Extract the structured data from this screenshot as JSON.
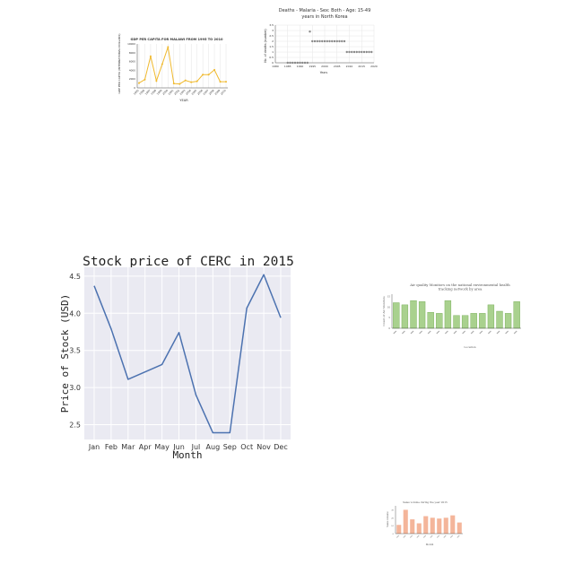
{
  "chart_data": [
    {
      "type": "line",
      "title": "GDP PER CAPITA FOR MALAWI FROM 1995 TO 2010",
      "xlabel": "YEAR",
      "ylabel": "GDP PER CAPITA (INTERNATIONAL DOLLARS)",
      "x": [
        "1995",
        "1996",
        "1997",
        "1998",
        "1999",
        "2000",
        "2001",
        "2002",
        "2003",
        "2004",
        "2005",
        "2006",
        "2007",
        "2008",
        "2009",
        "2010"
      ],
      "values": [
        1100,
        1900,
        7200,
        1600,
        5400,
        9300,
        1000,
        900,
        1700,
        1300,
        1500,
        3000,
        3000,
        4100,
        1400,
        1400
      ],
      "ylim": [
        0,
        10000
      ],
      "yticks": [
        0,
        2000,
        4000,
        6000,
        8000,
        10000
      ],
      "grid": "vertical",
      "colors": {
        "line": "#f0b92d"
      }
    },
    {
      "type": "scatter",
      "title_lines": [
        "Deaths - Malaria - Sex: Both - Age: 15-49",
        "years in North Korea"
      ],
      "xlabel": "Years",
      "ylabel": "No. of deaths (number)",
      "x_ticks": [
        "1980",
        "1985",
        "1990",
        "1995",
        "2000",
        "2005",
        "2010",
        "2015",
        "2020"
      ],
      "y_ticks": [
        "0",
        "0.5",
        "1",
        "1.5",
        "2",
        "2.5",
        "3",
        "3.5"
      ],
      "xlim": [
        1980,
        2020
      ],
      "ylim": [
        0,
        3.5
      ],
      "points_x": [
        1985,
        1986,
        1987,
        1988,
        1989,
        1990,
        1991,
        1992,
        1993,
        1994,
        1995,
        1996,
        1997,
        1998,
        1999,
        2000,
        2001,
        2002,
        2003,
        2004,
        2005,
        2006,
        2007,
        2008,
        2009,
        2010,
        2011,
        2012,
        2013,
        2014,
        2015,
        2016,
        2017,
        2018,
        2019
      ],
      "points_y": [
        0,
        0,
        0,
        0,
        0,
        0,
        0,
        0,
        0,
        2.9,
        2,
        2,
        2,
        2,
        2,
        2,
        2,
        2,
        2,
        2,
        2,
        2,
        2,
        2,
        1,
        1,
        1,
        1,
        1,
        1,
        1,
        1,
        1,
        1,
        1
      ],
      "grid": "both",
      "colors": {
        "point": "#8a8a8a"
      }
    },
    {
      "type": "line",
      "title": "Stock price of CERC in 2015",
      "xlabel": "Month",
      "ylabel": "Price of Stock (USD)",
      "categories": [
        "Jan",
        "Feb",
        "Mar",
        "Apr",
        "May",
        "Jun",
        "Jul",
        "Aug",
        "Sep",
        "Oct",
        "Nov",
        "Dec"
      ],
      "values": [
        4.37,
        3.79,
        3.11,
        3.21,
        3.31,
        3.74,
        2.9,
        2.39,
        2.39,
        4.07,
        4.52,
        3.94
      ],
      "yticks": [
        2.5,
        3.0,
        3.5,
        4.0,
        4.5
      ],
      "ytick_labels": [
        "2.5",
        "3.0",
        "3.5",
        "4.0",
        "4.5"
      ],
      "ylim": [
        2.3,
        4.62
      ],
      "grid": "both",
      "colors": {
        "line": "#4c72b0",
        "background": "#eaeaf2"
      }
    },
    {
      "type": "bar",
      "title_lines": [
        "Air quality Monitors on the national environmental health",
        "tracking network by area"
      ],
      "xlabel": "Location",
      "ylabel": "Count of Air Monitors",
      "values": [
        12,
        11,
        13,
        12.5,
        7.5,
        7,
        13,
        6,
        6,
        7,
        7,
        11,
        8,
        7,
        12.5
      ],
      "ylim": [
        0,
        16
      ],
      "colors": {
        "bar": "#a9d18e",
        "edge": "#6fa84f"
      }
    },
    {
      "type": "bar",
      "title": "Sales volume during the year 2015",
      "xlabel": "Month",
      "ylabel": "Sales volume",
      "values": [
        11,
        30,
        18,
        13,
        22,
        20,
        19,
        20,
        23,
        14
      ],
      "ylim": [
        0,
        35
      ],
      "colors": {
        "bar": "#f4b59a"
      }
    }
  ]
}
